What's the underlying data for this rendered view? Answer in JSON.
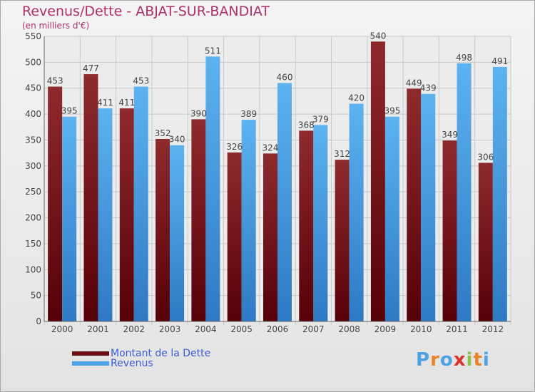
{
  "header": {
    "title": "Revenus/Dette - ABJAT-SUR-BANDIAT",
    "subtitle": "(en milliers d'€)"
  },
  "chart_data": {
    "type": "bar",
    "title": "Revenus/Dette - ABJAT-SUR-BANDIAT",
    "ylabel": "(en milliers d'€)",
    "xlabel": "",
    "categories": [
      "2000",
      "2001",
      "2002",
      "2003",
      "2004",
      "2005",
      "2006",
      "2007",
      "2008",
      "2009",
      "2010",
      "2011",
      "2012"
    ],
    "series": [
      {
        "name": "Montant de la Dette",
        "color": "#7a1a1e",
        "values": [
          453,
          477,
          411,
          352,
          390,
          326,
          324,
          368,
          312,
          540,
          449,
          349,
          306
        ]
      },
      {
        "name": "Revenus",
        "color": "#4ba3e6",
        "values": [
          395,
          411,
          453,
          340,
          511,
          389,
          460,
          379,
          420,
          395,
          439,
          498,
          491
        ]
      }
    ],
    "ylim": [
      0,
      550
    ],
    "yticks": [
      0,
      50,
      100,
      150,
      200,
      250,
      300,
      350,
      400,
      450,
      500,
      550
    ],
    "grid": true,
    "legend_position": "bottom-left"
  },
  "legend": {
    "items": [
      {
        "label": "Montant de la Dette",
        "color": "#7a1a1e"
      },
      {
        "label": "Revenus",
        "color": "#4ba3e6"
      }
    ]
  },
  "logo": {
    "text": "Proxiti",
    "letters": [
      "P",
      "r",
      "o",
      "x",
      "i",
      "t",
      "i"
    ],
    "colors": [
      "#4ba3e6",
      "#e8842a",
      "#4ba3e6",
      "#d9342b",
      "#8bc34a",
      "#e8842a",
      "#4ba3e6"
    ]
  }
}
